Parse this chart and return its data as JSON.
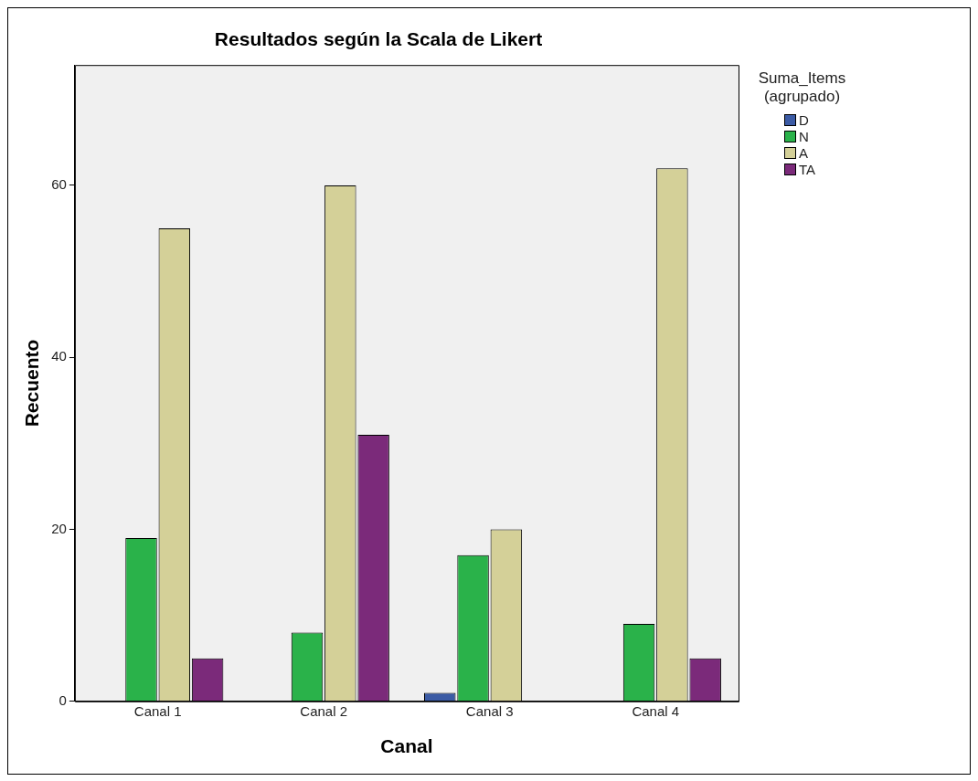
{
  "chart_data": {
    "type": "bar",
    "title": "Resultados según la Scala de Likert",
    "xlabel": "Canal",
    "ylabel": "Recuento",
    "legend_title": "Suma_Items (agrupado)",
    "categories": [
      "Canal 1",
      "Canal 2",
      "Canal 3",
      "Canal 4"
    ],
    "series": [
      {
        "name": "D",
        "color": "#3b5ba5",
        "values": [
          null,
          null,
          1,
          null
        ]
      },
      {
        "name": "N",
        "color": "#2ab24a",
        "values": [
          19,
          8,
          17,
          9
        ]
      },
      {
        "name": "A",
        "color": "#d4d098",
        "values": [
          55,
          60,
          20,
          62
        ]
      },
      {
        "name": "TA",
        "color": "#7b2a7a",
        "values": [
          5,
          31,
          null,
          5
        ]
      }
    ],
    "ylim": [
      0,
      74
    ],
    "yticks": [
      0,
      20,
      40,
      60
    ],
    "grid": false,
    "legend": "top right"
  }
}
